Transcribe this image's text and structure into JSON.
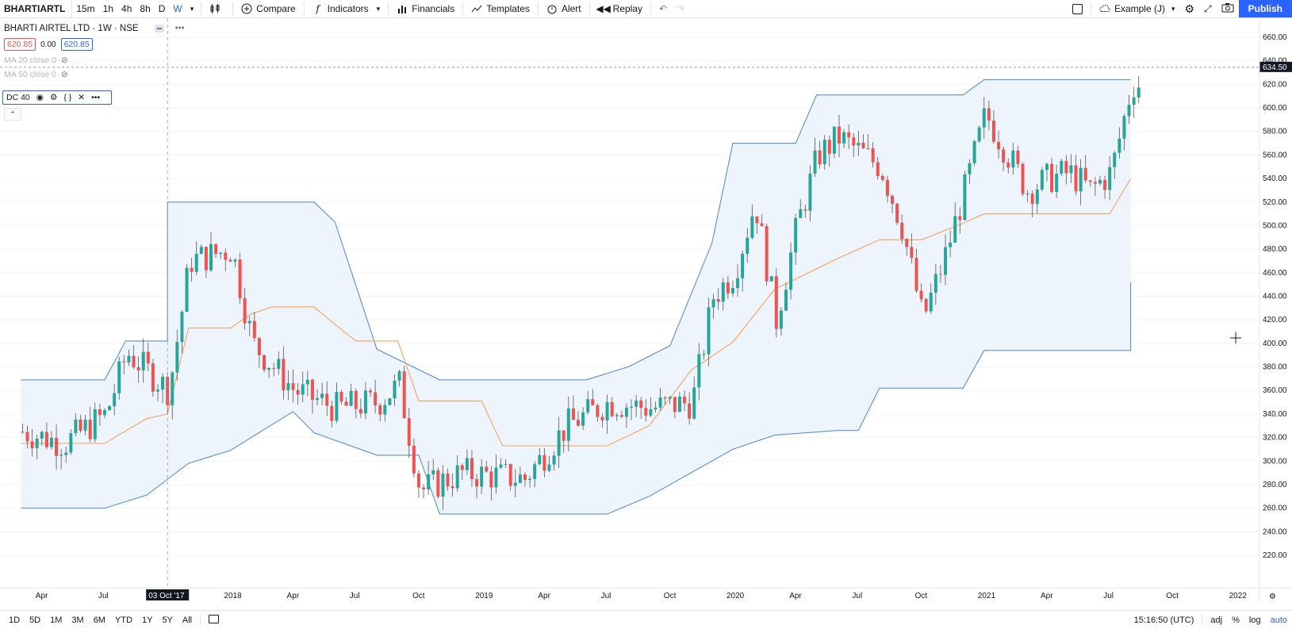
{
  "toolbar": {
    "symbol": "BHARTIARTL",
    "intervals": [
      "15m",
      "1h",
      "4h",
      "8h",
      "D",
      "W"
    ],
    "active_interval": "W",
    "compare": "Compare",
    "indicators": "Indicators",
    "financials": "Financials",
    "templates": "Templates",
    "alert": "Alert",
    "replay": "Replay",
    "layout_name": "Example (J)",
    "publish": "Publish"
  },
  "legend": {
    "title": "BHARTI AIRTEL LTD · 1W · NSE",
    "sell": "620.85",
    "spread": "0.00",
    "buy": "620.85",
    "ma20": "MA 20 close 0",
    "ma50": "MA 50 close 0",
    "dc": "DC 40"
  },
  "price_axis": {
    "ticks": [
      "660.00",
      "640.00",
      "620.00",
      "600.00",
      "580.00",
      "560.00",
      "540.00",
      "520.00",
      "500.00",
      "480.00",
      "460.00",
      "440.00",
      "420.00",
      "400.00",
      "380.00",
      "360.00",
      "340.00",
      "320.00",
      "300.00",
      "280.00",
      "260.00",
      "240.00",
      "220.00"
    ],
    "last_price": "634.50"
  },
  "time_axis": {
    "ticks": [
      "Apr",
      "Jul",
      "2018",
      "Apr",
      "Jul",
      "Oct",
      "2019",
      "Apr",
      "Jul",
      "Oct",
      "2020",
      "Apr",
      "Jul",
      "Oct",
      "2021",
      "Apr",
      "Jul",
      "Oct",
      "2022"
    ],
    "crosshair_date": "03 Oct '17"
  },
  "bottom": {
    "ranges": [
      "1D",
      "5D",
      "1M",
      "3M",
      "6M",
      "YTD",
      "1Y",
      "5Y",
      "All"
    ],
    "clock": "15:16:50 (UTC)",
    "adj": "adj",
    "pct": "%",
    "log": "log",
    "auto": "auto"
  },
  "colors": {
    "up": "#26a69a",
    "down": "#ef5350",
    "channel": "#5b8fd6",
    "fill": "#eef4fc",
    "middle": "#f5a25d",
    "accent": "#2962ff"
  },
  "chart_data": {
    "type": "candlestick",
    "title": "BHARTI AIRTEL LTD · 1W · NSE",
    "ylim": [
      220,
      660
    ],
    "upper_channel": [
      [
        "2017-03",
        369
      ],
      [
        "2017-07",
        369
      ],
      [
        "2017-08",
        402
      ],
      [
        "2017-10",
        402
      ],
      [
        "2017-10",
        520
      ],
      [
        "2018-05",
        520
      ],
      [
        "2018-06",
        503
      ],
      [
        "2018-08",
        395
      ],
      [
        "2018-11",
        369
      ],
      [
        "2019-06",
        369
      ],
      [
        "2019-08",
        380
      ],
      [
        "2019-10",
        398
      ],
      [
        "2019-12",
        485
      ],
      [
        "2020-01",
        570
      ],
      [
        "2020-04",
        570
      ],
      [
        "2020-05",
        611
      ],
      [
        "2020-12",
        611
      ],
      [
        "2021-01",
        624
      ],
      [
        "2021-08",
        624
      ]
    ],
    "lower_channel": [
      [
        "2017-03",
        260
      ],
      [
        "2017-07",
        260
      ],
      [
        "2017-09",
        271
      ],
      [
        "2017-11",
        298
      ],
      [
        "2018-01",
        309
      ],
      [
        "2018-04",
        342
      ],
      [
        "2018-05",
        324
      ],
      [
        "2018-08",
        305
      ],
      [
        "2018-10",
        305
      ],
      [
        "2018-11",
        255
      ],
      [
        "2019-07",
        255
      ],
      [
        "2019-09",
        270
      ],
      [
        "2019-11",
        290
      ],
      [
        "2020-01",
        310
      ],
      [
        "2020-03",
        322
      ],
      [
        "2020-06",
        326
      ],
      [
        "2020-07",
        326
      ],
      [
        "2020-08",
        362
      ],
      [
        "2020-12",
        362
      ],
      [
        "2021-01",
        394
      ],
      [
        "2021-08",
        394
      ],
      [
        "2021-08",
        452
      ]
    ],
    "middle_channel": [
      [
        "2017-03",
        315
      ],
      [
        "2017-07",
        315
      ],
      [
        "2017-09",
        336
      ],
      [
        "2017-10",
        340
      ],
      [
        "2017-11",
        413
      ],
      [
        "2018-01",
        413
      ],
      [
        "2018-02",
        425
      ],
      [
        "2018-03",
        431
      ],
      [
        "2018-05",
        431
      ],
      [
        "2018-06",
        416
      ],
      [
        "2018-07",
        402
      ],
      [
        "2018-09",
        402
      ],
      [
        "2018-10",
        351
      ],
      [
        "2019-01",
        351
      ],
      [
        "2019-02",
        313
      ],
      [
        "2019-07",
        313
      ],
      [
        "2019-09",
        330
      ],
      [
        "2019-11",
        377
      ],
      [
        "2020-01",
        401
      ],
      [
        "2020-03",
        446
      ],
      [
        "2020-06",
        472
      ],
      [
        "2020-08",
        488
      ],
      [
        "2020-10",
        488
      ],
      [
        "2020-12",
        502
      ],
      [
        "2021-01",
        510
      ],
      [
        "2021-07",
        510
      ],
      [
        "2021-08",
        540
      ]
    ],
    "candles_start": "2017-03",
    "candles_end": "2021-08",
    "last_close": 620.85
  }
}
